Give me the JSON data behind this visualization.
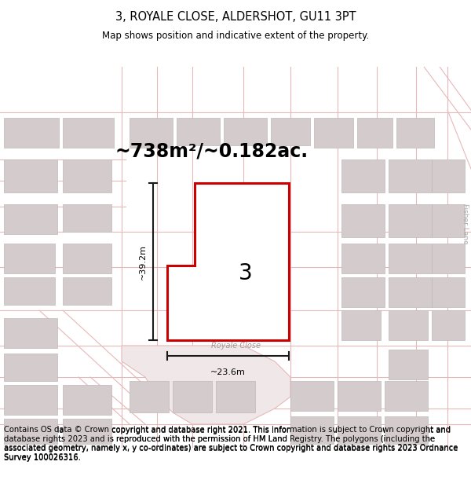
{
  "title": "3, ROYALE CLOSE, ALDERSHOT, GU11 3PT",
  "subtitle": "Map shows position and indicative extent of the property.",
  "area_text": "~738m²/~0.182ac.",
  "label_number": "3",
  "dim_height": "~39.2m",
  "dim_width": "~23.6m",
  "street_name": "Royale Close",
  "side_label": "Fisher Lane",
  "footer_text": "Contains OS data © Crown copyright and database right 2021. This information is subject to Crown copyright and database rights 2023 and is reproduced with the permission of HM Land Registry. The polygons (including the associated geometry, namely x, y co-ordinates) are subject to Crown copyright and database rights 2023 Ordnance Survey 100026316.",
  "bg_color": "#ffffff",
  "map_bg": "#ffffff",
  "road_color": "#e8b8b8",
  "building_color": "#d4cccc",
  "building_edge": "#c0b8b8",
  "property_fill": "#ffffff",
  "property_edge": "#cc0000",
  "dim_line_color": "#1a1a1a",
  "title_fontsize": 10.5,
  "subtitle_fontsize": 8.5,
  "area_fontsize": 17,
  "label_fontsize": 20,
  "footer_fontsize": 7.2
}
